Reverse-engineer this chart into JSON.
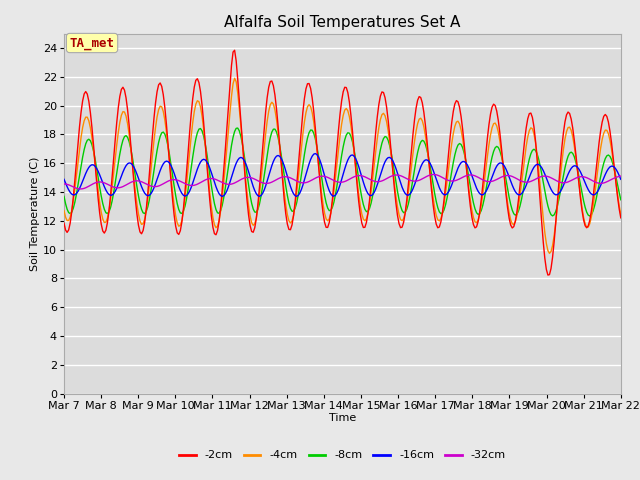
{
  "title": "Alfalfa Soil Temperatures Set A",
  "xlabel": "Time",
  "ylabel": "Soil Temperature (C)",
  "ylim": [
    0,
    25
  ],
  "yticks": [
    0,
    2,
    4,
    6,
    8,
    10,
    12,
    14,
    16,
    18,
    20,
    22,
    24
  ],
  "x_labels": [
    "Mar 7",
    "Mar 8",
    "Mar 9",
    "Mar 10",
    "Mar 11",
    "Mar 12",
    "Mar 13",
    "Mar 14",
    "Mar 15",
    "Mar 16",
    "Mar 17",
    "Mar 18",
    "Mar 19",
    "Mar 20",
    "Mar 21",
    "Mar 22"
  ],
  "series": {
    "-2cm": {
      "color": "#FF0000"
    },
    "-4cm": {
      "color": "#FF8C00"
    },
    "-8cm": {
      "color": "#00CC00"
    },
    "-16cm": {
      "color": "#0000FF"
    },
    "-32cm": {
      "color": "#CC00CC"
    }
  },
  "annotation": {
    "text": "TA_met",
    "fontsize": 9,
    "color": "#AA0000",
    "bbox_facecolor": "#FFFFAA",
    "bbox_edgecolor": "#AAAAAA"
  },
  "background_color": "#E8E8E8",
  "plot_bg_color": "#DCDCDC",
  "grid_color": "#FFFFFF",
  "title_fontsize": 11,
  "legend_fontsize": 8,
  "axis_fontsize": 8
}
